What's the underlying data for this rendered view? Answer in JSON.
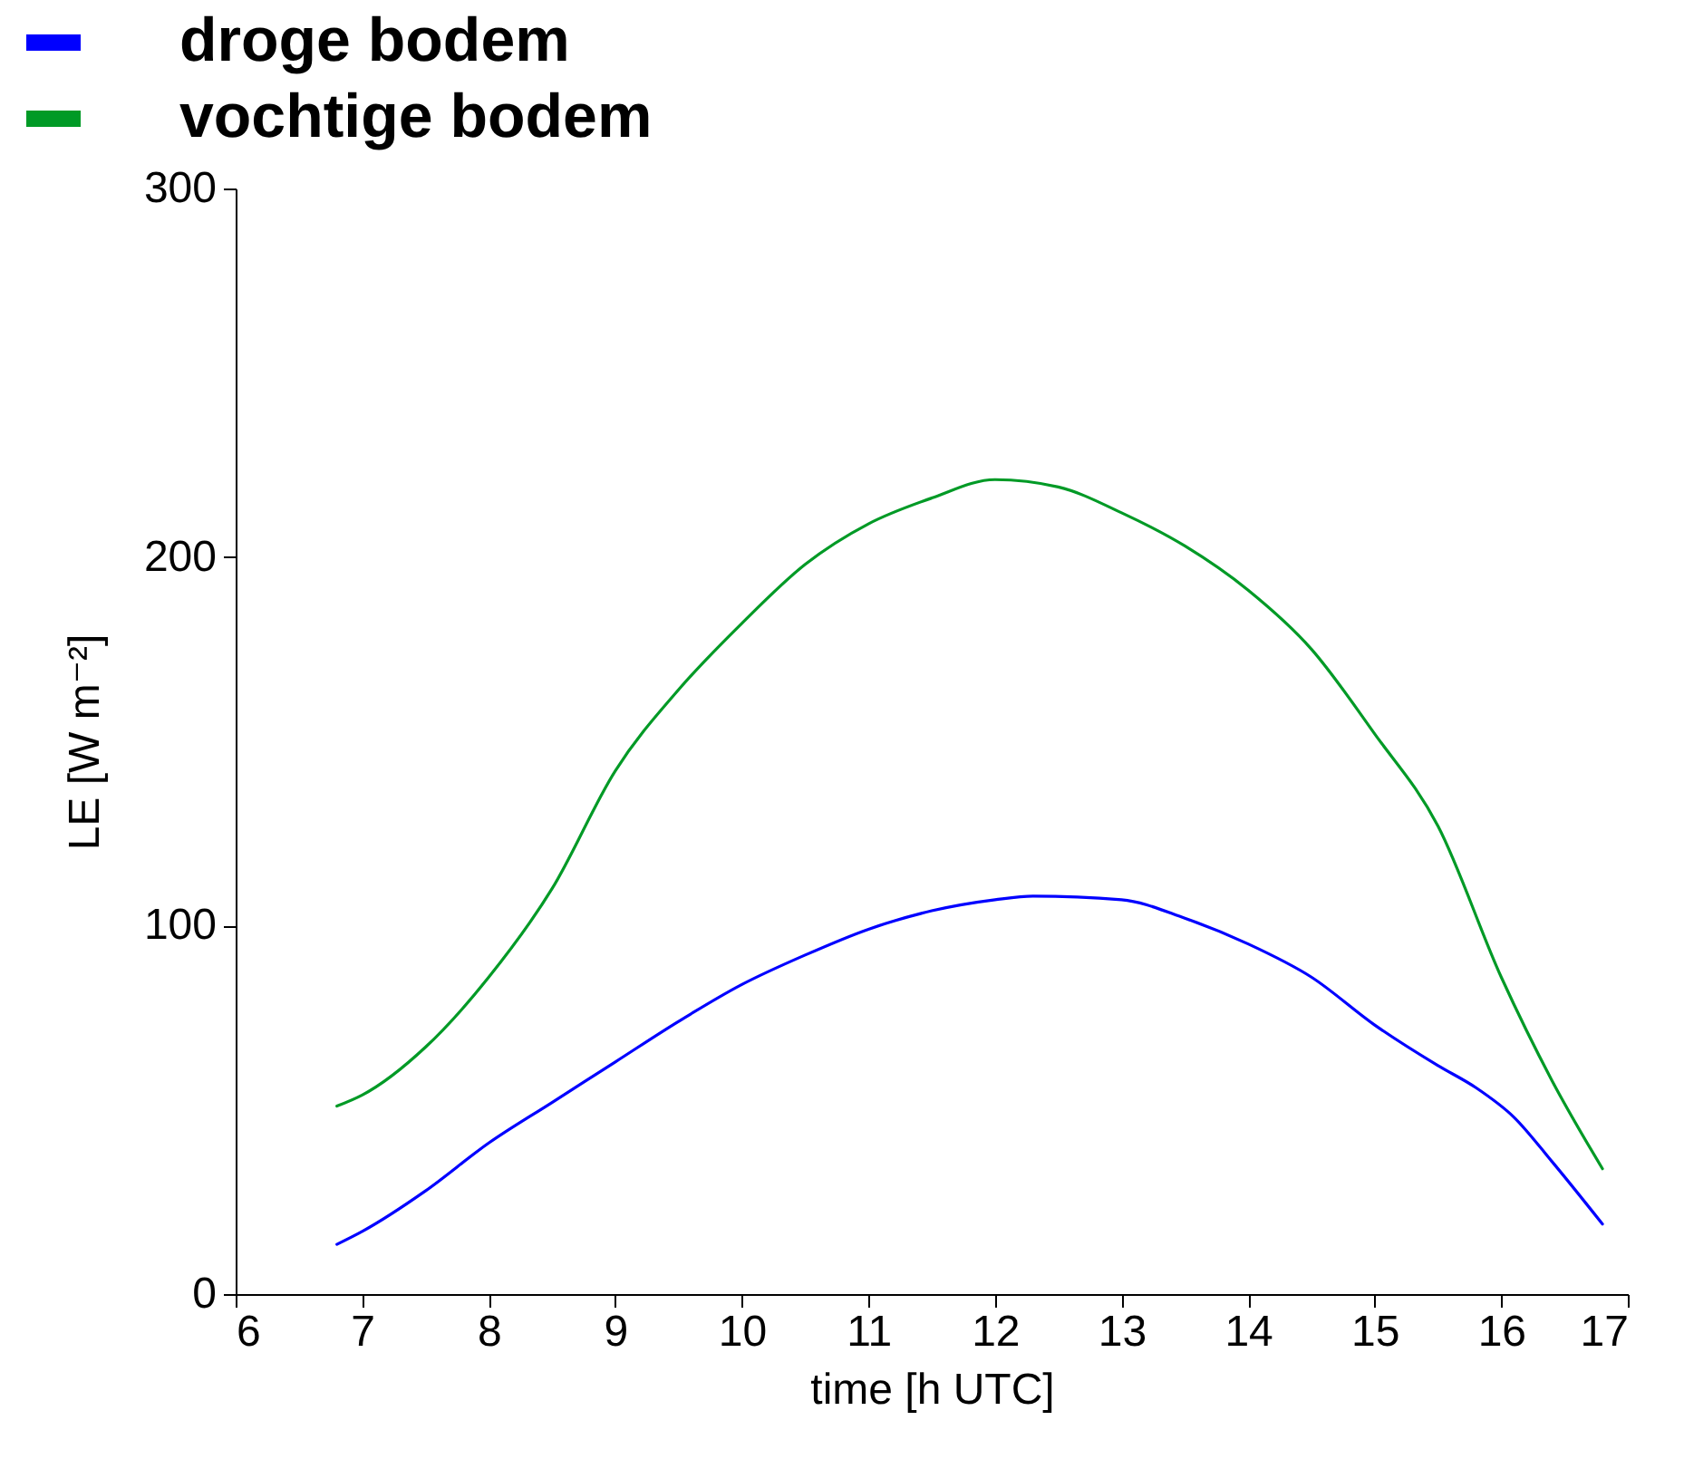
{
  "chart_data": {
    "type": "line",
    "xlabel": "time [h UTC]",
    "ylabel": "LE [W m⁻²]",
    "xlim": [
      6,
      17
    ],
    "xticks": [
      6,
      7,
      8,
      9,
      10,
      11,
      12,
      13,
      14,
      15,
      16,
      17
    ],
    "ylim": [
      0,
      300
    ],
    "yticks": [
      0,
      100,
      200,
      300
    ],
    "grid": false,
    "legend": "top left",
    "series": [
      {
        "name": "droge bodem",
        "color": "#0000ff",
        "x": [
          6.8,
          7,
          7.5,
          8,
          8.5,
          9,
          9.5,
          10,
          10.5,
          11,
          11.5,
          12,
          12.3,
          13,
          13.5,
          14,
          14.5,
          15,
          15.5,
          15.8,
          16.1,
          16.4,
          16.8
        ],
        "values": [
          13.5,
          17,
          28,
          41,
          52,
          63,
          74,
          84,
          92,
          99,
          104,
          107,
          108,
          107,
          102,
          95,
          86,
          73,
          62,
          56,
          48,
          36,
          19
        ]
      },
      {
        "name": "vochtige bodem",
        "color": "#009a26",
        "x": [
          6.8,
          7,
          7.5,
          8,
          8.5,
          9,
          9.5,
          10,
          10.5,
          11,
          11.5,
          12,
          12.5,
          13,
          13.5,
          14,
          14.5,
          15,
          15.5,
          16,
          16.4,
          16.8
        ],
        "values": [
          51,
          54,
          67,
          86,
          110,
          142,
          164,
          182,
          198,
          209,
          216,
          221,
          219,
          212,
          203,
          191,
          175,
          152,
          127,
          86,
          58,
          34
        ]
      }
    ]
  }
}
